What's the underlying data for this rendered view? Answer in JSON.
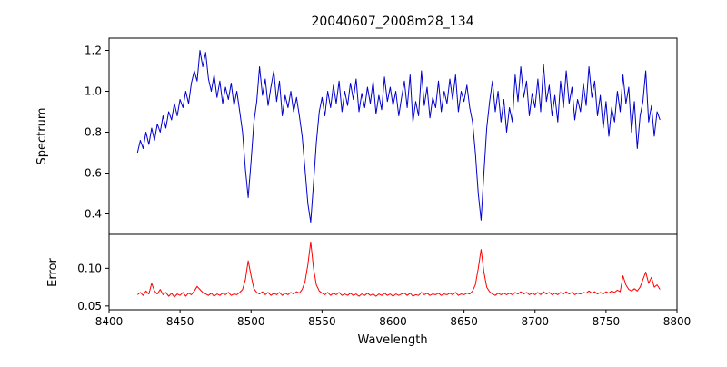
{
  "figure_bg": "#ffffff",
  "chart_data": {
    "type": "line",
    "title": "20040607_2008m28_134",
    "xlabel": "Wavelength",
    "xlim": [
      8400,
      8800
    ],
    "x_ticks": [
      8400,
      8450,
      8500,
      8550,
      8600,
      8650,
      8700,
      8750,
      8800
    ],
    "legend": "none",
    "grid": false,
    "panels": [
      {
        "name": "spectrum",
        "ylabel": "Spectrum",
        "ylim": [
          0.3,
          1.26
        ],
        "color": "#0000cc",
        "y_ticks": [
          {
            "value": 0.4,
            "label": "0.4"
          },
          {
            "value": 0.6,
            "label": "0.6"
          },
          {
            "value": 0.8,
            "label": "0.8"
          },
          {
            "value": 1.0,
            "label": "1.0"
          },
          {
            "value": 1.2,
            "label": "1.2"
          }
        ],
        "absorption_lines_x": [
          8498,
          8542,
          8662
        ],
        "series": {
          "x_start": 8420,
          "x_step": 2,
          "values": [
            0.7,
            0.76,
            0.72,
            0.8,
            0.74,
            0.82,
            0.76,
            0.84,
            0.8,
            0.88,
            0.82,
            0.9,
            0.86,
            0.94,
            0.88,
            0.96,
            0.92,
            1.0,
            0.94,
            1.04,
            1.1,
            1.05,
            1.2,
            1.12,
            1.19,
            1.06,
            1.0,
            1.08,
            0.97,
            1.05,
            0.94,
            1.02,
            0.96,
            1.04,
            0.93,
            1.0,
            0.9,
            0.8,
            0.62,
            0.48,
            0.66,
            0.85,
            0.95,
            1.12,
            0.98,
            1.06,
            0.93,
            1.02,
            1.1,
            0.95,
            1.05,
            0.88,
            0.98,
            0.92,
            1.0,
            0.9,
            0.97,
            0.88,
            0.78,
            0.62,
            0.45,
            0.36,
            0.55,
            0.75,
            0.9,
            0.97,
            0.88,
            1.0,
            0.92,
            1.03,
            0.94,
            1.05,
            0.9,
            1.0,
            0.93,
            1.04,
            0.96,
            1.06,
            0.9,
            0.99,
            0.92,
            1.02,
            0.94,
            1.05,
            0.89,
            0.98,
            0.91,
            1.07,
            0.95,
            1.02,
            0.93,
            1.0,
            0.88,
            0.97,
            1.05,
            0.92,
            1.08,
            0.85,
            0.95,
            0.88,
            1.1,
            0.93,
            1.02,
            0.87,
            0.97,
            0.92,
            1.05,
            0.9,
            1.0,
            0.94,
            1.06,
            0.96,
            1.08,
            0.9,
            1.0,
            0.95,
            1.03,
            0.92,
            0.85,
            0.7,
            0.5,
            0.37,
            0.6,
            0.82,
            0.95,
            1.05,
            0.9,
            1.0,
            0.85,
            0.96,
            0.8,
            0.92,
            0.85,
            1.08,
            0.95,
            1.12,
            0.97,
            1.05,
            0.88,
            0.99,
            0.92,
            1.06,
            0.9,
            1.13,
            0.95,
            1.03,
            0.88,
            0.98,
            0.85,
            1.05,
            0.92,
            1.1,
            0.94,
            1.02,
            0.86,
            0.96,
            0.9,
            1.04,
            0.93,
            1.12,
            0.97,
            1.05,
            0.88,
            0.98,
            0.82,
            0.95,
            0.78,
            0.92,
            0.85,
            1.0,
            0.9,
            1.08,
            0.94,
            1.02,
            0.8,
            0.95,
            0.72,
            0.88,
            0.95,
            1.1,
            0.85,
            0.93,
            0.78,
            0.9,
            0.86
          ]
        }
      },
      {
        "name": "error",
        "ylabel": "Error",
        "ylim": [
          0.045,
          0.145
        ],
        "color": "#ff0000",
        "y_ticks": [
          {
            "value": 0.05,
            "label": "0.05"
          },
          {
            "value": 0.1,
            "label": "0.10"
          }
        ],
        "peak_lines_x": [
          8498,
          8542,
          8662
        ],
        "series": {
          "x_start": 8420,
          "x_step": 2,
          "values": [
            0.065,
            0.068,
            0.064,
            0.07,
            0.066,
            0.08,
            0.07,
            0.066,
            0.072,
            0.065,
            0.068,
            0.063,
            0.067,
            0.062,
            0.066,
            0.064,
            0.068,
            0.063,
            0.067,
            0.065,
            0.07,
            0.076,
            0.072,
            0.068,
            0.066,
            0.064,
            0.067,
            0.063,
            0.066,
            0.064,
            0.067,
            0.065,
            0.068,
            0.064,
            0.066,
            0.065,
            0.068,
            0.072,
            0.085,
            0.11,
            0.09,
            0.073,
            0.068,
            0.066,
            0.069,
            0.065,
            0.068,
            0.064,
            0.067,
            0.065,
            0.068,
            0.064,
            0.067,
            0.065,
            0.068,
            0.066,
            0.069,
            0.067,
            0.072,
            0.082,
            0.105,
            0.135,
            0.1,
            0.078,
            0.07,
            0.067,
            0.065,
            0.068,
            0.064,
            0.067,
            0.065,
            0.068,
            0.064,
            0.066,
            0.064,
            0.067,
            0.064,
            0.066,
            0.063,
            0.066,
            0.064,
            0.067,
            0.064,
            0.066,
            0.063,
            0.066,
            0.064,
            0.067,
            0.064,
            0.066,
            0.063,
            0.066,
            0.064,
            0.066,
            0.067,
            0.064,
            0.067,
            0.063,
            0.065,
            0.064,
            0.068,
            0.065,
            0.067,
            0.064,
            0.066,
            0.065,
            0.067,
            0.064,
            0.066,
            0.065,
            0.067,
            0.065,
            0.068,
            0.064,
            0.066,
            0.065,
            0.067,
            0.066,
            0.07,
            0.078,
            0.1,
            0.125,
            0.095,
            0.075,
            0.069,
            0.066,
            0.064,
            0.067,
            0.065,
            0.067,
            0.065,
            0.067,
            0.065,
            0.068,
            0.066,
            0.069,
            0.066,
            0.068,
            0.065,
            0.067,
            0.065,
            0.068,
            0.065,
            0.069,
            0.066,
            0.068,
            0.065,
            0.067,
            0.065,
            0.068,
            0.066,
            0.069,
            0.066,
            0.068,
            0.065,
            0.067,
            0.066,
            0.068,
            0.067,
            0.07,
            0.067,
            0.069,
            0.066,
            0.068,
            0.066,
            0.069,
            0.067,
            0.07,
            0.068,
            0.071,
            0.069,
            0.09,
            0.078,
            0.072,
            0.07,
            0.073,
            0.07,
            0.075,
            0.085,
            0.095,
            0.08,
            0.088,
            0.075,
            0.078,
            0.072
          ]
        }
      }
    ]
  }
}
